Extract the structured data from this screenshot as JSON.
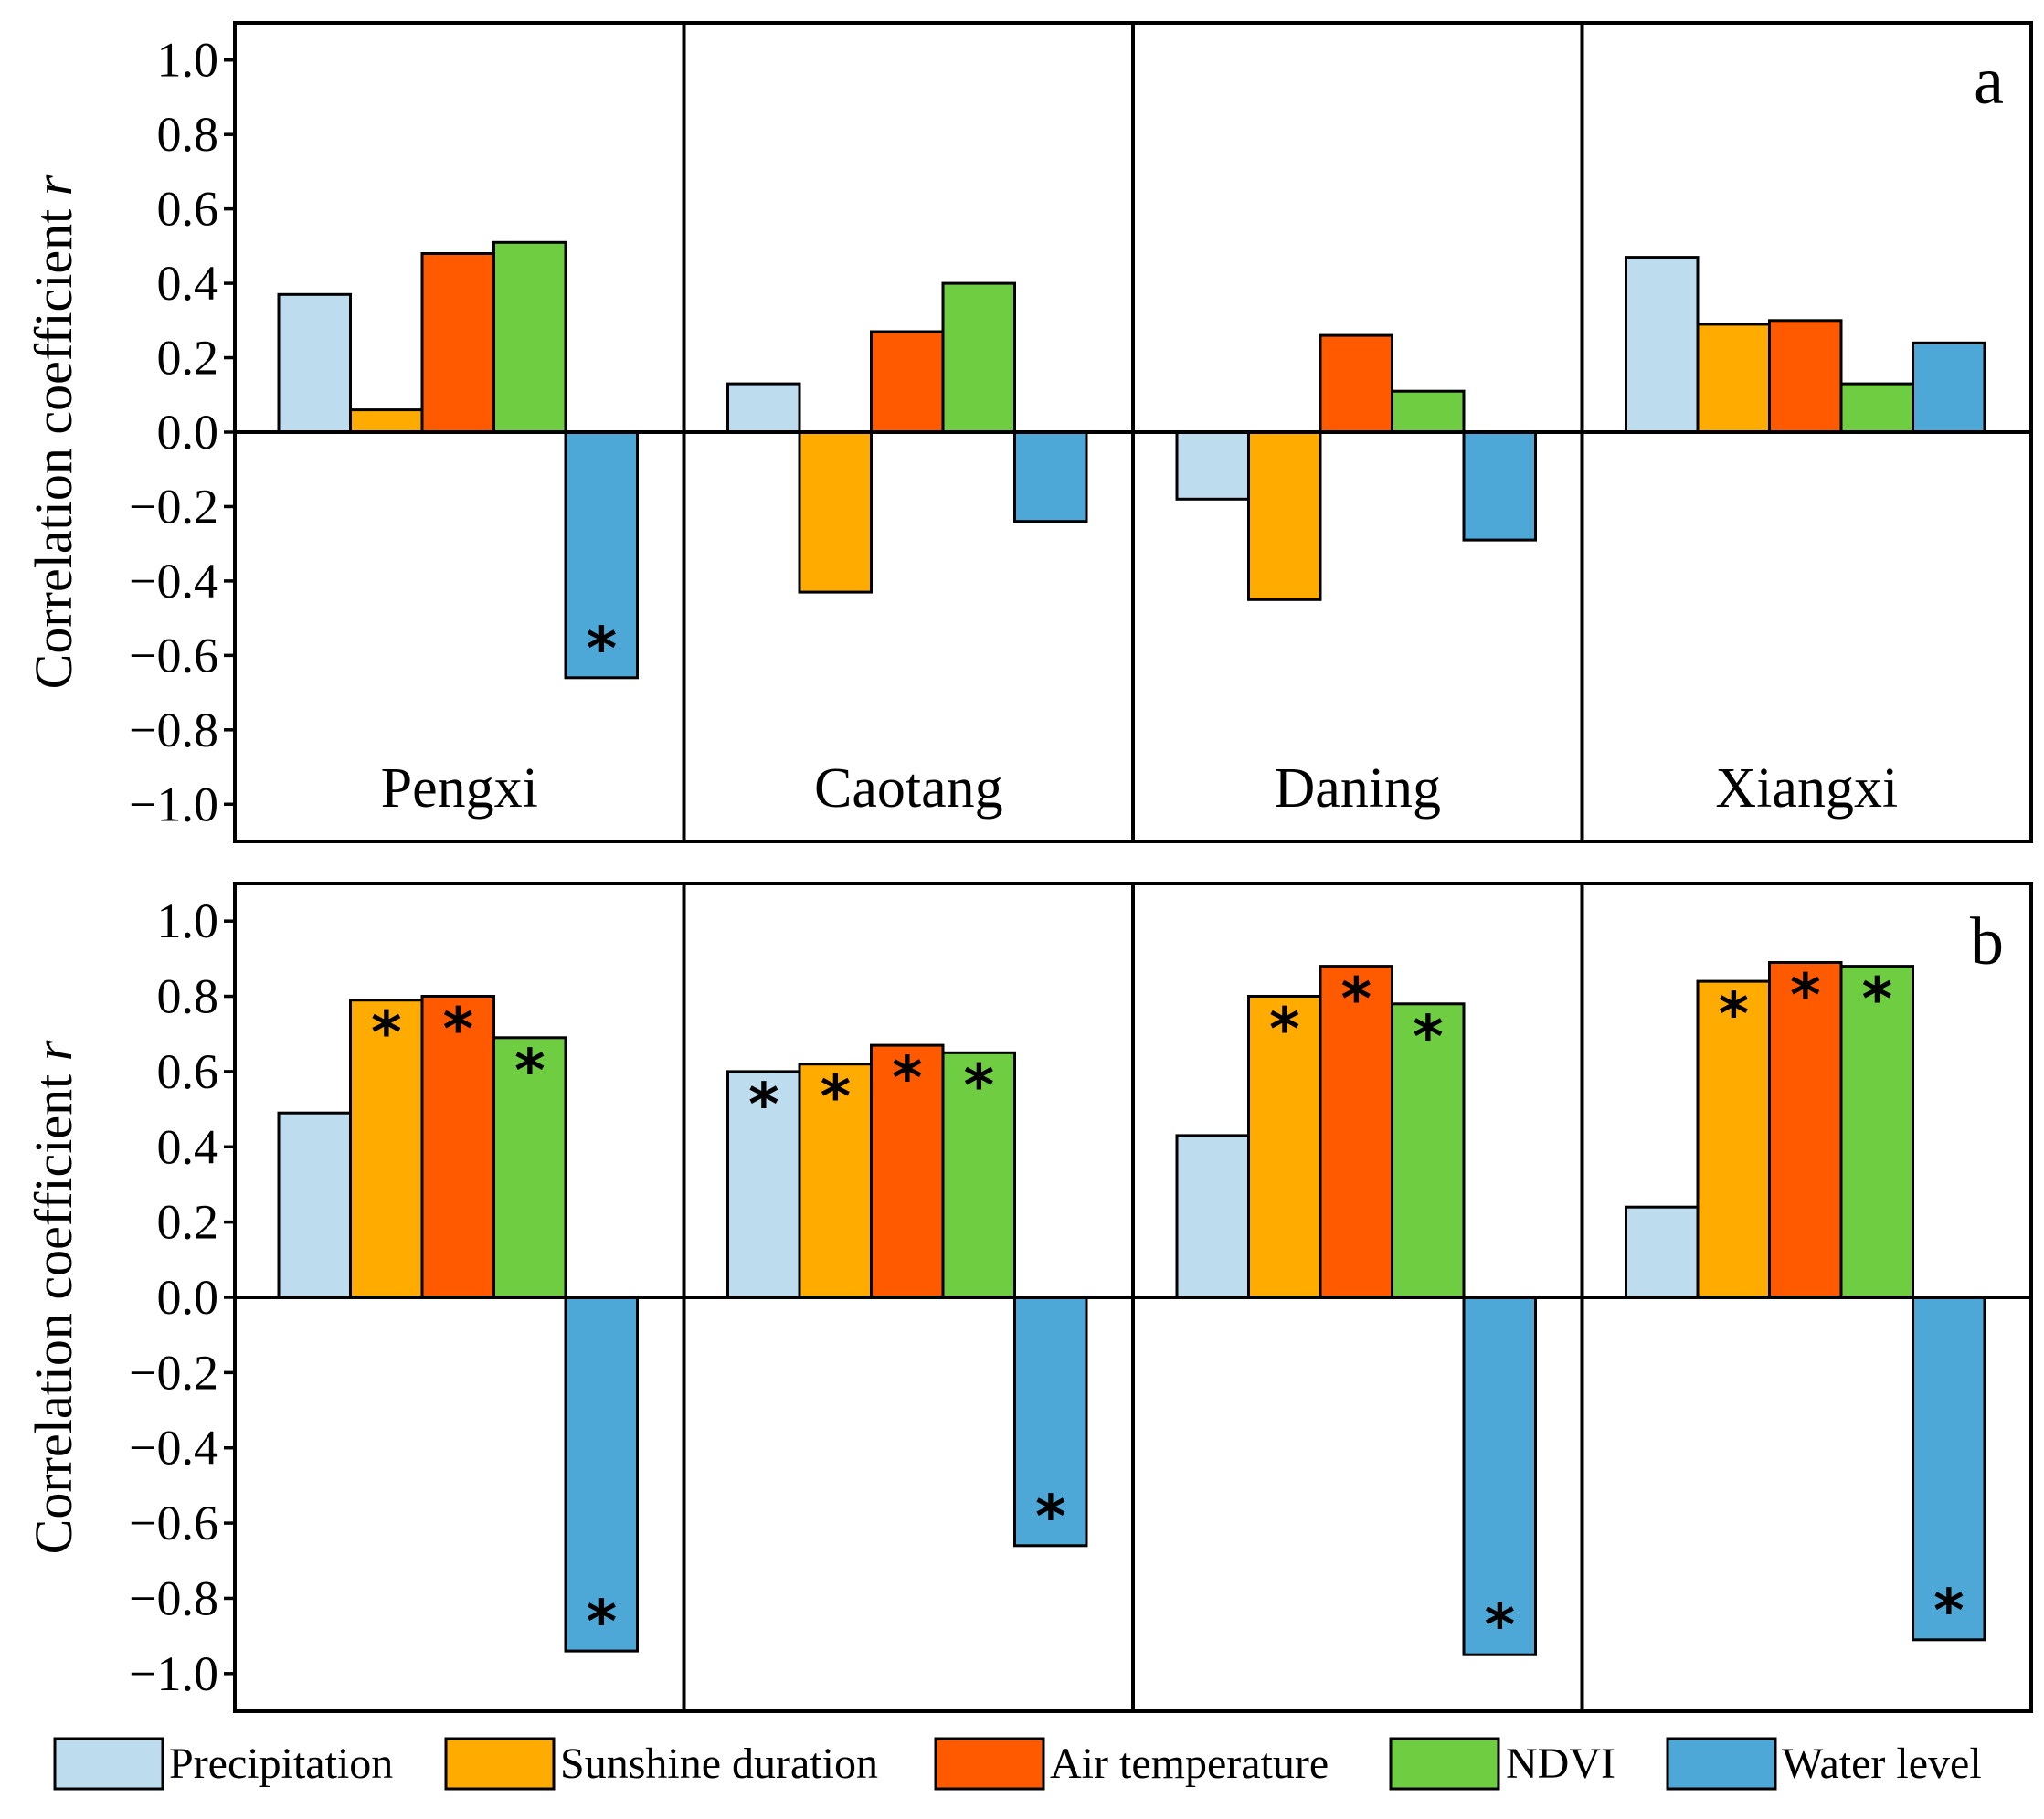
{
  "chart_data": [
    {
      "type": "bar",
      "panel_label": "a",
      "ylabel": "Correlation coefficient r",
      "ylabel_main": "Correlation coefficient ",
      "ylabel_var": "r",
      "ylim": [
        -1.1,
        1.1
      ],
      "yticks": [
        1.0,
        0.8,
        0.6,
        0.4,
        0.2,
        0.0,
        -0.2,
        -0.4,
        -0.6,
        -0.8,
        -1.0
      ],
      "ytick_labels": [
        "1.0",
        "0.8",
        "0.6",
        "0.4",
        "0.2",
        "0.0",
        "−0.2",
        "−0.4",
        "−0.6",
        "−0.8",
        "−1.0"
      ],
      "groups": [
        "Pengxi",
        "Caotang",
        "Daning",
        "Xiangxi"
      ],
      "series": [
        {
          "name": "Precipitation",
          "color": "#bddcee",
          "values": [
            0.37,
            0.13,
            -0.18,
            0.47
          ],
          "significant": [
            false,
            false,
            false,
            false
          ]
        },
        {
          "name": "Sunshine duration",
          "color": "#ffab00",
          "values": [
            0.06,
            -0.43,
            -0.45,
            0.29
          ],
          "significant": [
            false,
            false,
            false,
            false
          ]
        },
        {
          "name": "Air temperature",
          "color": "#ff5a00",
          "values": [
            0.48,
            0.27,
            0.26,
            0.3
          ],
          "significant": [
            false,
            false,
            false,
            false
          ]
        },
        {
          "name": "NDVI",
          "color": "#6fcd41",
          "values": [
            0.51,
            0.4,
            0.11,
            0.13
          ],
          "significant": [
            false,
            false,
            false,
            false
          ]
        },
        {
          "name": "Water level",
          "color": "#4da7d7",
          "values": [
            -0.66,
            -0.24,
            -0.29,
            0.24
          ],
          "significant": [
            true,
            false,
            false,
            false
          ]
        }
      ],
      "significance_marker": "*"
    },
    {
      "type": "bar",
      "panel_label": "b",
      "ylabel": "Correlation coefficient r",
      "ylabel_main": "Correlation coefficient ",
      "ylabel_var": "r",
      "ylim": [
        -1.1,
        1.1
      ],
      "yticks": [
        1.0,
        0.8,
        0.6,
        0.4,
        0.2,
        0.0,
        -0.2,
        -0.4,
        -0.6,
        -0.8,
        -1.0
      ],
      "ytick_labels": [
        "1.0",
        "0.8",
        "0.6",
        "0.4",
        "0.2",
        "0.0",
        "−0.2",
        "−0.4",
        "−0.6",
        "−0.8",
        "−1.0"
      ],
      "groups": [
        "Pengxi",
        "Caotang",
        "Daning",
        "Xiangxi"
      ],
      "series": [
        {
          "name": "Precipitation",
          "color": "#bddcee",
          "values": [
            0.49,
            0.6,
            0.43,
            0.24
          ],
          "significant": [
            false,
            true,
            false,
            false
          ]
        },
        {
          "name": "Sunshine duration",
          "color": "#ffab00",
          "values": [
            0.79,
            0.62,
            0.8,
            0.84
          ],
          "significant": [
            true,
            true,
            true,
            true
          ]
        },
        {
          "name": "Air temperature",
          "color": "#ff5a00",
          "values": [
            0.8,
            0.67,
            0.88,
            0.89
          ],
          "significant": [
            true,
            true,
            true,
            true
          ]
        },
        {
          "name": "NDVI",
          "color": "#6fcd41",
          "values": [
            0.69,
            0.65,
            0.78,
            0.88
          ],
          "significant": [
            true,
            true,
            true,
            true
          ]
        },
        {
          "name": "Water level",
          "color": "#4da7d7",
          "values": [
            -0.94,
            -0.66,
            -0.95,
            -0.91
          ],
          "significant": [
            true,
            true,
            true,
            true
          ]
        }
      ],
      "significance_marker": "*"
    }
  ],
  "legend": {
    "position": "bottom",
    "items": [
      {
        "label": "Precipitation",
        "color": "#bddcee"
      },
      {
        "label": "Sunshine duration",
        "color": "#ffab00"
      },
      {
        "label": "Air temperature",
        "color": "#ff5a00"
      },
      {
        "label": "NDVI",
        "color": "#6fcd41"
      },
      {
        "label": "Water level",
        "color": "#4da7d7"
      }
    ]
  }
}
